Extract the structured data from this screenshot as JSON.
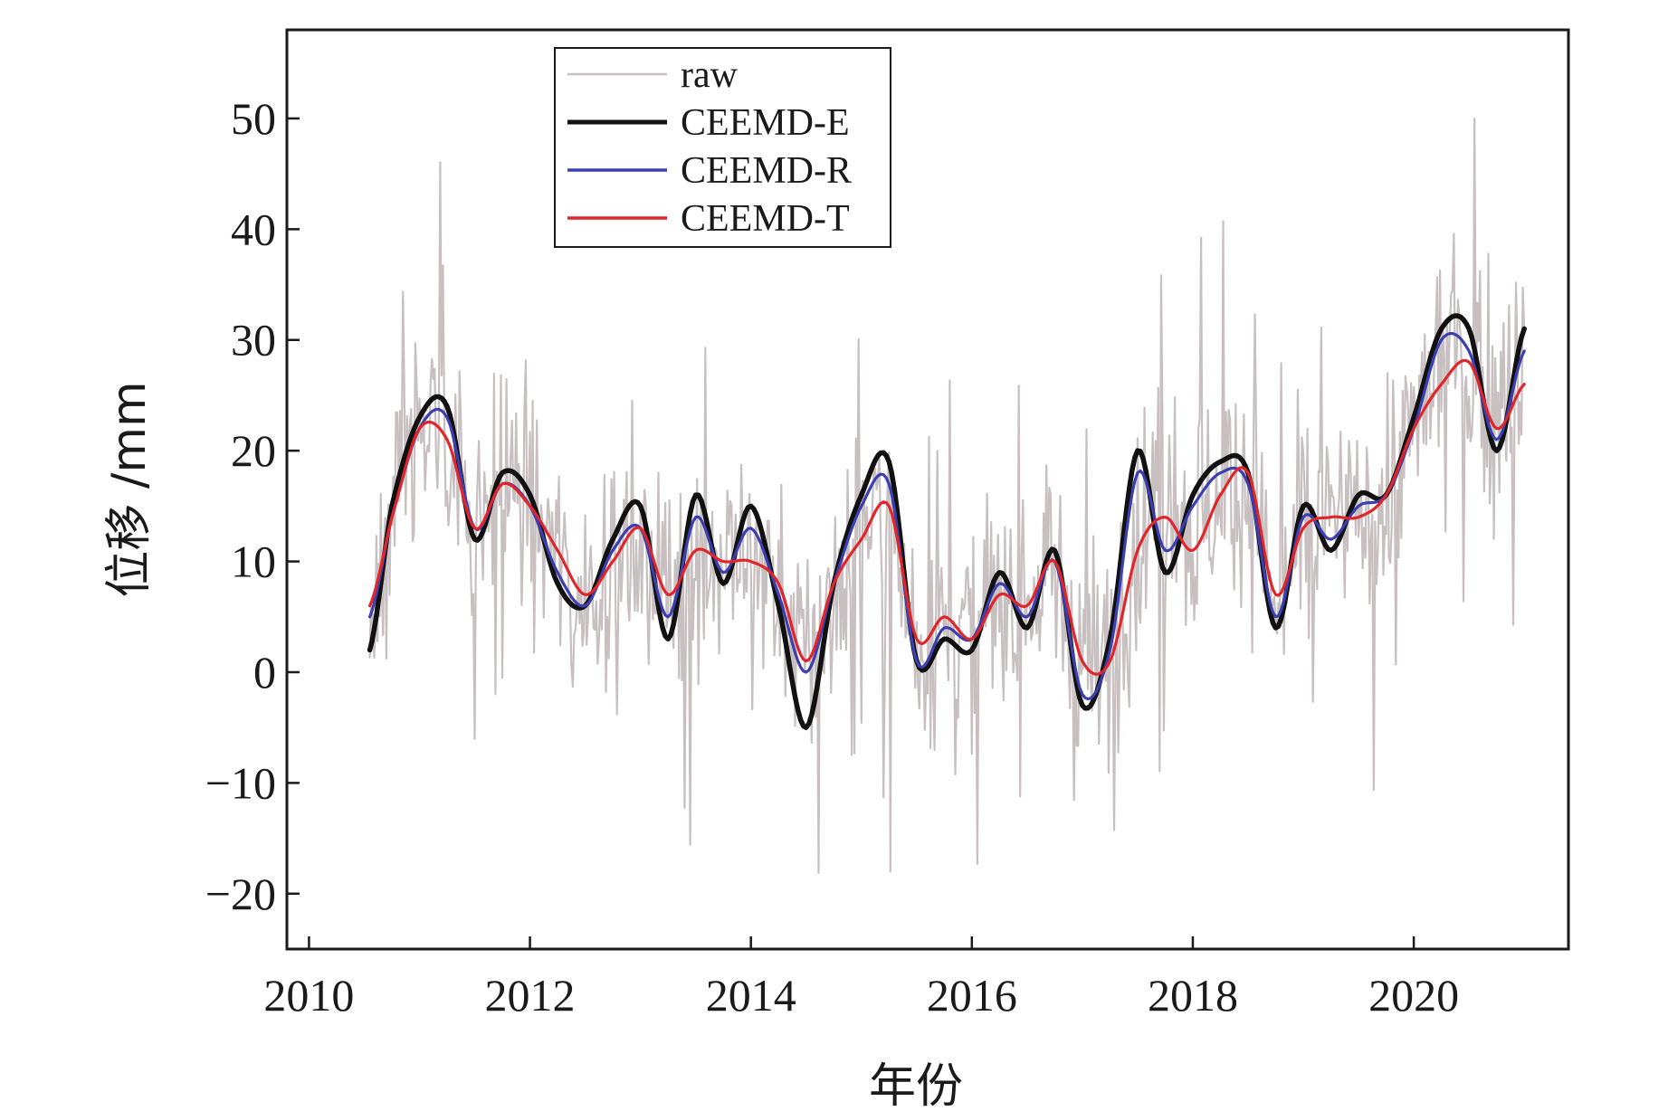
{
  "chart_data": {
    "type": "line",
    "title": "",
    "xlabel": "年份",
    "ylabel": "位移 /mm",
    "xlim": [
      2009.8,
      2021.4
    ],
    "ylim": [
      -25,
      58
    ],
    "xticks": [
      2010,
      2012,
      2014,
      2016,
      2018,
      2020
    ],
    "xtick_labels": [
      "2010",
      "2012",
      "2014",
      "2016",
      "2018",
      "2020"
    ],
    "yticks": [
      -20,
      -10,
      0,
      10,
      20,
      30,
      40,
      50
    ],
    "ytick_labels": [
      "−20",
      "−10",
      "0",
      "10",
      "20",
      "30",
      "40",
      "50"
    ],
    "grid": false,
    "legend_position": "top-left",
    "series": [
      {
        "name": "raw",
        "color": "#c8c0c0",
        "x": [
          2010.55,
          2010.75,
          2011.0,
          2011.25,
          2011.5,
          2011.75,
          2012.0,
          2012.25,
          2012.5,
          2012.75,
          2013.0,
          2013.25,
          2013.5,
          2013.75,
          2014.0,
          2014.25,
          2014.5,
          2014.75,
          2015.0,
          2015.25,
          2015.5,
          2015.75,
          2016.0,
          2016.25,
          2016.5,
          2016.75,
          2017.0,
          2017.25,
          2017.5,
          2017.75,
          2018.0,
          2018.25,
          2018.5,
          2018.75,
          2019.0,
          2019.25,
          2019.5,
          2019.75,
          2020.0,
          2020.25,
          2020.5,
          2020.75,
          2021.0
        ],
        "values": [
          5,
          15,
          22,
          22,
          14,
          17,
          15,
          10,
          7,
          11,
          12,
          7,
          11,
          10,
          11,
          7,
          1,
          7,
          13,
          14,
          3,
          4,
          3,
          7,
          6,
          9,
          1,
          2,
          12,
          17,
          13,
          16,
          17,
          6,
          13,
          13,
          14,
          16,
          22,
          29,
          28,
          24,
          27
        ]
      },
      {
        "name": "CEEMD-E",
        "color": "#111111",
        "x": [
          2010.55,
          2010.75,
          2011.0,
          2011.25,
          2011.5,
          2011.75,
          2012.0,
          2012.25,
          2012.5,
          2012.75,
          2013.0,
          2013.25,
          2013.5,
          2013.75,
          2014.0,
          2014.25,
          2014.5,
          2014.75,
          2015.0,
          2015.25,
          2015.5,
          2015.75,
          2016.0,
          2016.25,
          2016.5,
          2016.75,
          2017.0,
          2017.25,
          2017.5,
          2017.75,
          2018.0,
          2018.25,
          2018.5,
          2018.75,
          2019.0,
          2019.25,
          2019.5,
          2019.75,
          2020.0,
          2020.25,
          2020.5,
          2020.75,
          2021.0
        ],
        "values": [
          2,
          15,
          23,
          24,
          12,
          18,
          16,
          8,
          6,
          12,
          15,
          3,
          16,
          8,
          15,
          6,
          -5,
          8,
          16,
          19,
          1,
          3,
          2,
          9,
          4,
          11,
          -3,
          3,
          20,
          9,
          16,
          19,
          18,
          4,
          15,
          11,
          16,
          16,
          23,
          31,
          31,
          20,
          31
        ]
      },
      {
        "name": "CEEMD-R",
        "color": "#3b3fb0",
        "x": [
          2010.55,
          2010.75,
          2011.0,
          2011.25,
          2011.5,
          2011.75,
          2012.0,
          2012.25,
          2012.5,
          2012.75,
          2013.0,
          2013.25,
          2013.5,
          2013.75,
          2014.0,
          2014.25,
          2014.5,
          2014.75,
          2015.0,
          2015.25,
          2015.5,
          2015.75,
          2016.0,
          2016.25,
          2016.5,
          2016.75,
          2017.0,
          2017.25,
          2017.5,
          2017.75,
          2018.0,
          2018.25,
          2018.5,
          2018.75,
          2019.0,
          2019.25,
          2019.5,
          2019.75,
          2020.0,
          2020.25,
          2020.5,
          2020.75,
          2021.0
        ],
        "values": [
          5,
          14,
          22,
          23,
          13,
          17,
          15,
          9,
          6,
          11,
          13,
          5,
          14,
          9,
          13,
          7,
          0,
          8,
          15,
          17,
          1,
          4,
          3,
          8,
          5,
          10,
          -2,
          2,
          18,
          11,
          15,
          18,
          17,
          5,
          14,
          12,
          15,
          16,
          22,
          30,
          29,
          21,
          29
        ]
      },
      {
        "name": "CEEMD-T",
        "color": "#e0262b",
        "x": [
          2010.55,
          2010.75,
          2011.0,
          2011.25,
          2011.5,
          2011.75,
          2012.0,
          2012.25,
          2012.5,
          2012.75,
          2013.0,
          2013.25,
          2013.5,
          2013.75,
          2014.0,
          2014.25,
          2014.5,
          2014.75,
          2015.0,
          2015.25,
          2015.5,
          2015.75,
          2016.0,
          2016.25,
          2016.5,
          2016.75,
          2017.0,
          2017.25,
          2017.5,
          2017.75,
          2018.0,
          2018.25,
          2018.5,
          2018.75,
          2019.0,
          2019.25,
          2019.5,
          2019.75,
          2020.0,
          2020.25,
          2020.5,
          2020.75,
          2021.0
        ],
        "values": [
          6,
          14,
          22,
          21,
          13,
          17,
          15,
          11,
          7,
          10,
          13,
          7,
          11,
          10,
          10,
          8,
          1,
          8,
          12,
          15,
          3,
          5,
          3,
          7,
          6,
          10,
          1,
          1,
          11,
          14,
          11,
          16,
          18,
          7,
          13,
          14,
          14,
          16,
          22,
          26,
          28,
          22,
          26
        ]
      }
    ]
  }
}
